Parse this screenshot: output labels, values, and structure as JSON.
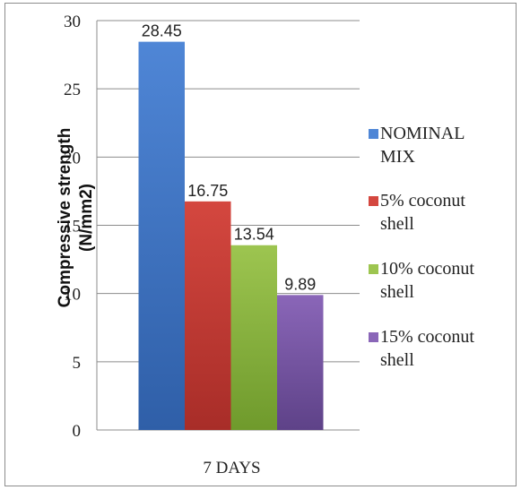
{
  "chart_data": {
    "type": "bar",
    "categories": [
      "7 DAYS"
    ],
    "series": [
      {
        "name": "NOMINAL MIX",
        "values": [
          28.45
        ],
        "label": "28.45",
        "color_top": "#4f86d6",
        "color_bottom": "#2f5fa8"
      },
      {
        "name": "5% coconut shell",
        "values": [
          16.75
        ],
        "label": "16.75",
        "color_top": "#d4473f",
        "color_bottom": "#a82d28"
      },
      {
        "name": "10% coconut shell",
        "values": [
          13.54
        ],
        "label": "13.54",
        "color_top": "#9dc550",
        "color_bottom": "#6f9a2c"
      },
      {
        "name": "15% coconut shell",
        "values": [
          9.89
        ],
        "label": "9.89",
        "color_top": "#8a66b8",
        "color_bottom": "#5e4288"
      }
    ],
    "ylabel_lines": [
      "Compressive strength",
      "(N/mm2)"
    ],
    "xlabel": "",
    "ylim": [
      0,
      30
    ],
    "yticks": [
      "0",
      "5",
      "10",
      "15",
      "20",
      "25",
      "30"
    ],
    "grid": true,
    "legend_position": "right"
  }
}
